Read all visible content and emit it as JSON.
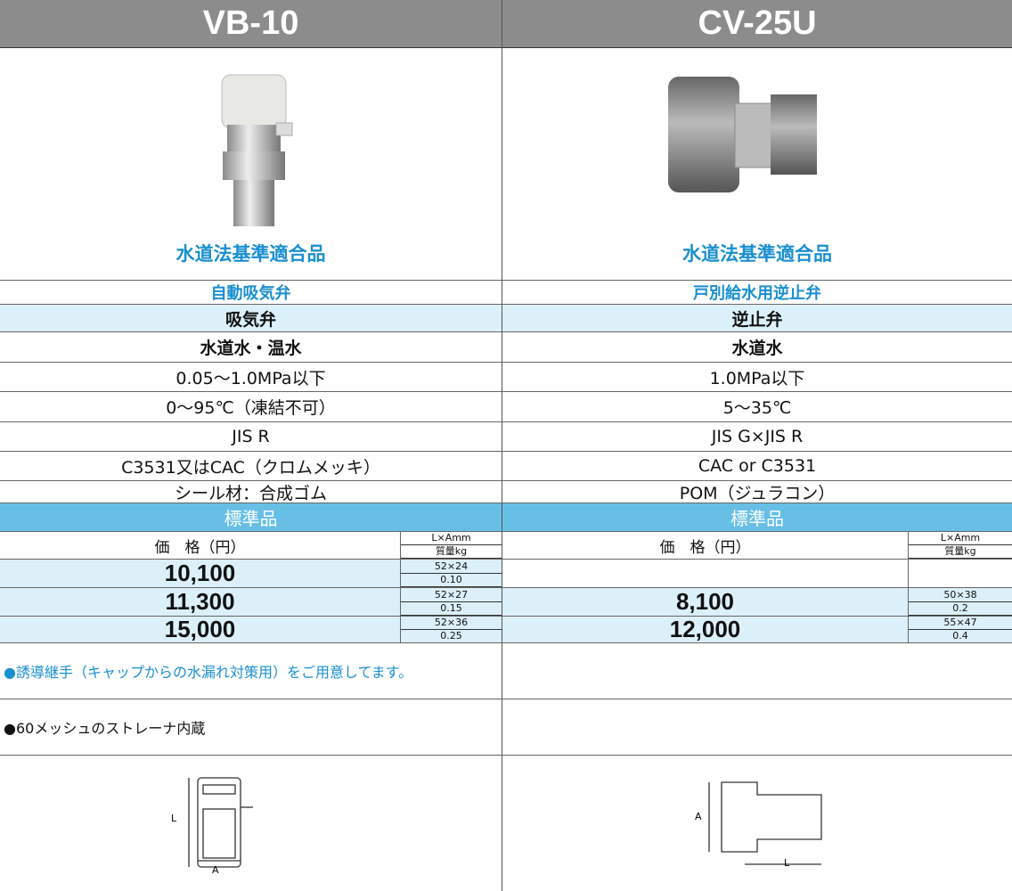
{
  "columns": [
    {
      "model": "VB-10",
      "badge": "水道法基準適合品",
      "category": "自動吸気弁",
      "type": "吸気弁",
      "fluid": "水道水・温水",
      "pressure": "0.05～1.0MPa以下",
      "temperature": "0～95℃（凍結不可）",
      "connection": "JIS R",
      "material": "C3531又はCAC（クロムメッキ）",
      "seal": "シール材：合成ゴム",
      "standard": "標準品",
      "price_header": "価　格（円）",
      "dim_header": "L×Amm",
      "weight_header": "質量kg",
      "prices": [
        {
          "price": "10,100",
          "size": "52×24",
          "weight": "0.10"
        },
        {
          "price": "11,300",
          "size": "52×27",
          "weight": "0.15"
        },
        {
          "price": "15,000",
          "size": "52×36",
          "weight": "0.25"
        }
      ],
      "notes": [
        "●誘導継手（キャップからの水漏れ対策用）をご用意してます。",
        "●60メッシュのストレーナ内蔵"
      ],
      "diagram_labels": [
        "L",
        "A"
      ]
    },
    {
      "model": "CV-25U",
      "badge": "水道法基準適合品",
      "category": "戸別給水用逆止弁",
      "type": "逆止弁",
      "fluid": "水道水",
      "pressure": "1.0MPa以下",
      "temperature": "5～35℃",
      "connection": "JIS G×JIS R",
      "material": "CAC or C3531",
      "seal": "POM（ジュラコン）",
      "standard": "標準品",
      "price_header": "価　格（円）",
      "dim_header": "L×Amm",
      "weight_header": "質量kg",
      "prices": [
        null,
        {
          "price": "8,100",
          "size": "50×38",
          "weight": "0.2"
        },
        {
          "price": "12,000",
          "size": "55×47",
          "weight": "0.4"
        }
      ],
      "notes": [],
      "diagram_labels": [
        "A",
        "L"
      ]
    }
  ]
}
